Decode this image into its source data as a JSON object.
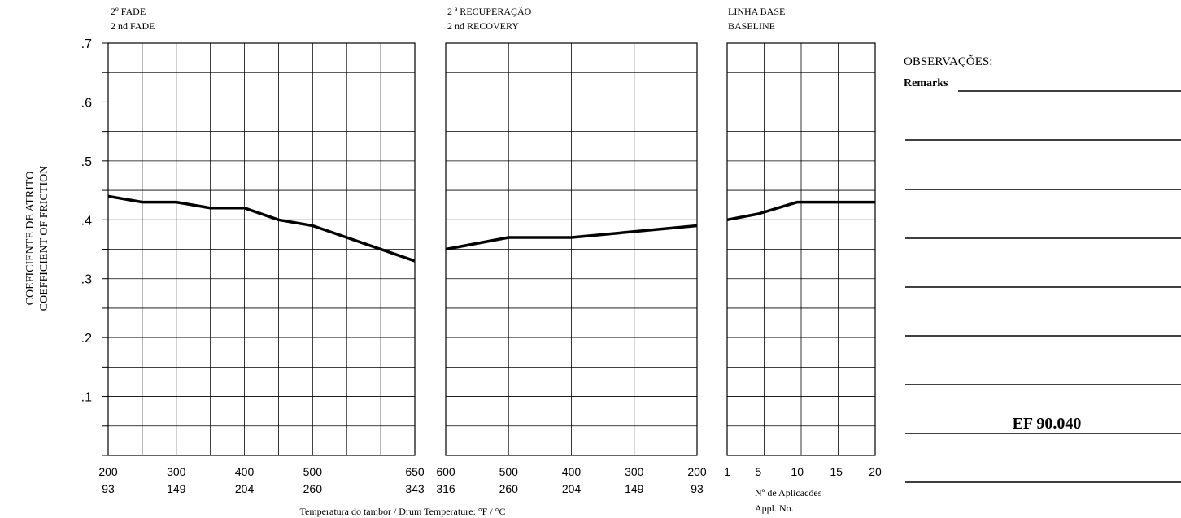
{
  "y_axis": {
    "label_line1": "COEFICIENTE DE ATRITO",
    "label_line2": "COEFFICIENT OF FRICTION"
  },
  "x_axis_label": "Temperatura do tambor / Drum Temperature: °F / °C",
  "remarks": {
    "title_pt": "OBSERVAÇÕES:",
    "title_en": "Remarks",
    "code": "EF 90.040"
  },
  "colors": {
    "line": "#000000",
    "grid": "#000000",
    "background": "#ffffff"
  },
  "chart_data": [
    {
      "type": "line",
      "title_line1": "2º FADE",
      "title_line2": "2 nd FADE",
      "ylim": [
        0,
        0.7
      ],
      "yticks": [
        ".1",
        ".2",
        ".3",
        ".4",
        ".5",
        ".6",
        ".7"
      ],
      "xlim": [
        200,
        650
      ],
      "xticks_primary": [
        "200",
        "300",
        "400",
        "500",
        "650"
      ],
      "xticks_secondary": [
        "93",
        "149",
        "204",
        "260",
        "343"
      ],
      "x": [
        200,
        250,
        300,
        350,
        400,
        450,
        500,
        650
      ],
      "y": [
        0.44,
        0.43,
        0.43,
        0.42,
        0.42,
        0.4,
        0.39,
        0.33
      ],
      "grid": true
    },
    {
      "type": "line",
      "title_line1": "2 ª RECUPERAÇÃO",
      "title_line2": "2 nd RECOVERY",
      "ylim": [
        0,
        0.7
      ],
      "xlim": [
        600,
        200
      ],
      "xticks_primary": [
        "600",
        "500",
        "400",
        "300",
        "200"
      ],
      "xticks_secondary": [
        "316",
        "260",
        "204",
        "149",
        "93"
      ],
      "x": [
        600,
        500,
        400,
        200
      ],
      "y": [
        0.35,
        0.37,
        0.37,
        0.39
      ],
      "grid": true
    },
    {
      "type": "line",
      "title_line1": "LINHA BASE",
      "title_line2": "BASELINE",
      "ylim": [
        0,
        0.7
      ],
      "xlim": [
        1,
        20
      ],
      "xticks_primary": [
        "1",
        "5",
        "10",
        "15",
        "20"
      ],
      "xlabel_line1": "Nº de Aplicacões",
      "xlabel_line2": "Appl. No.",
      "x": [
        1,
        5,
        10,
        20
      ],
      "y": [
        0.4,
        0.41,
        0.43,
        0.43
      ],
      "grid": true
    }
  ]
}
